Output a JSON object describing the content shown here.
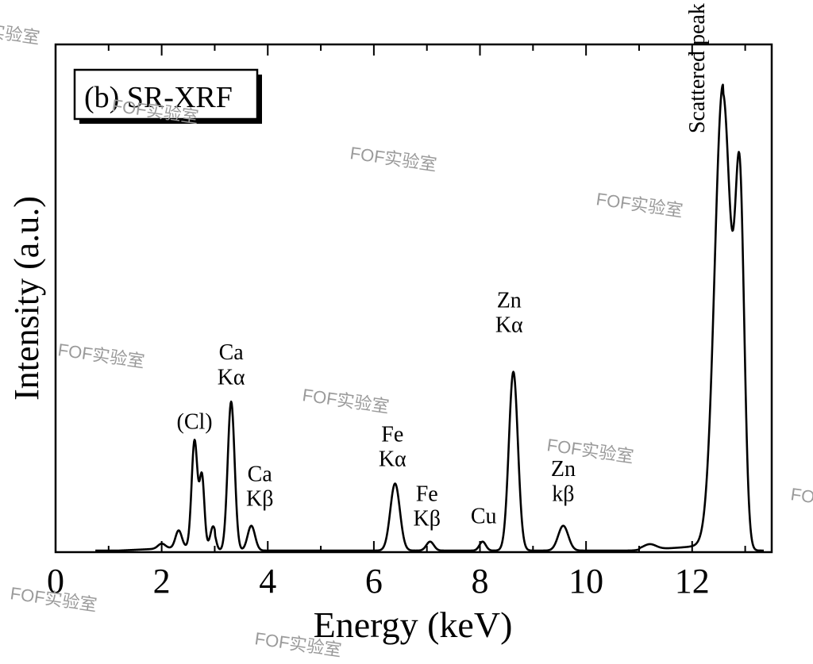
{
  "chart_data": {
    "type": "line",
    "panel_label": "(b) SR-XRF",
    "xlabel": "Energy (keV)",
    "ylabel": "Intensity (a.u.)",
    "xlim": [
      0,
      13.5
    ],
    "ylim": [
      0,
      1.0
    ],
    "x_ticks": [
      0,
      2,
      4,
      6,
      8,
      10,
      12
    ],
    "x_tick_labels": [
      "0",
      "2",
      "4",
      "6",
      "8",
      "10",
      "12"
    ],
    "grid": false,
    "series": [
      {
        "baseline": 0.0,
        "peaks": [
          {
            "center": 2.0,
            "height": 0.01,
            "width": 0.07
          },
          {
            "center": 2.32,
            "height": 0.035,
            "width": 0.06
          },
          {
            "center": 2.62,
            "height": 0.215,
            "width": 0.055
          },
          {
            "center": 2.76,
            "height": 0.14,
            "width": 0.045
          },
          {
            "center": 2.97,
            "height": 0.04,
            "width": 0.05
          },
          {
            "center": 3.31,
            "height": 0.3,
            "width": 0.065
          },
          {
            "center": 3.69,
            "height": 0.05,
            "width": 0.07
          },
          {
            "center": 6.4,
            "height": 0.135,
            "width": 0.09
          },
          {
            "center": 7.06,
            "height": 0.018,
            "width": 0.07
          },
          {
            "center": 8.05,
            "height": 0.018,
            "width": 0.06
          },
          {
            "center": 8.63,
            "height": 0.36,
            "width": 0.085
          },
          {
            "center": 9.57,
            "height": 0.05,
            "width": 0.095
          },
          {
            "center": 11.2,
            "height": 0.01,
            "width": 0.12
          },
          {
            "center": 12.58,
            "height": 0.92,
            "width": 0.155
          },
          {
            "center": 12.9,
            "height": 0.68,
            "width": 0.085
          }
        ]
      }
    ],
    "annotations": [
      {
        "text": "(Cl)",
        "x": 2.62,
        "y": 0.245
      },
      {
        "text": "Ca",
        "x": 3.31,
        "y": 0.385
      },
      {
        "text": "Kα",
        "x": 3.31,
        "y": 0.335
      },
      {
        "text": "Ca",
        "x": 3.85,
        "y": 0.14
      },
      {
        "text": "Kβ",
        "x": 3.85,
        "y": 0.09
      },
      {
        "text": "Fe",
        "x": 6.35,
        "y": 0.22
      },
      {
        "text": "Kα",
        "x": 6.35,
        "y": 0.17
      },
      {
        "text": "Fe",
        "x": 7.0,
        "y": 0.1
      },
      {
        "text": "Kβ",
        "x": 7.0,
        "y": 0.05
      },
      {
        "text": "Cu",
        "x": 8.07,
        "y": 0.055
      },
      {
        "text": "Zn",
        "x": 8.55,
        "y": 0.49
      },
      {
        "text": "Kα",
        "x": 8.55,
        "y": 0.44
      },
      {
        "text": "Zn",
        "x": 9.57,
        "y": 0.15
      },
      {
        "text": "kβ",
        "x": 9.57,
        "y": 0.1
      }
    ],
    "vertical_annotation": {
      "text": "Scattered peak",
      "x": 12.2,
      "y": 0.84
    }
  },
  "watermarks": [
    "FOF实验室",
    "FOF实验室",
    "FOF实验室",
    "FOF实验室",
    "FOF实验室",
    "FOF实验室",
    "FOF实验室",
    "FOF实验室",
    "FOF实验室",
    "FOF实验室"
  ],
  "colors": {
    "line": "#000000",
    "axes": "#000000",
    "watermark": "#9a9a9a"
  }
}
